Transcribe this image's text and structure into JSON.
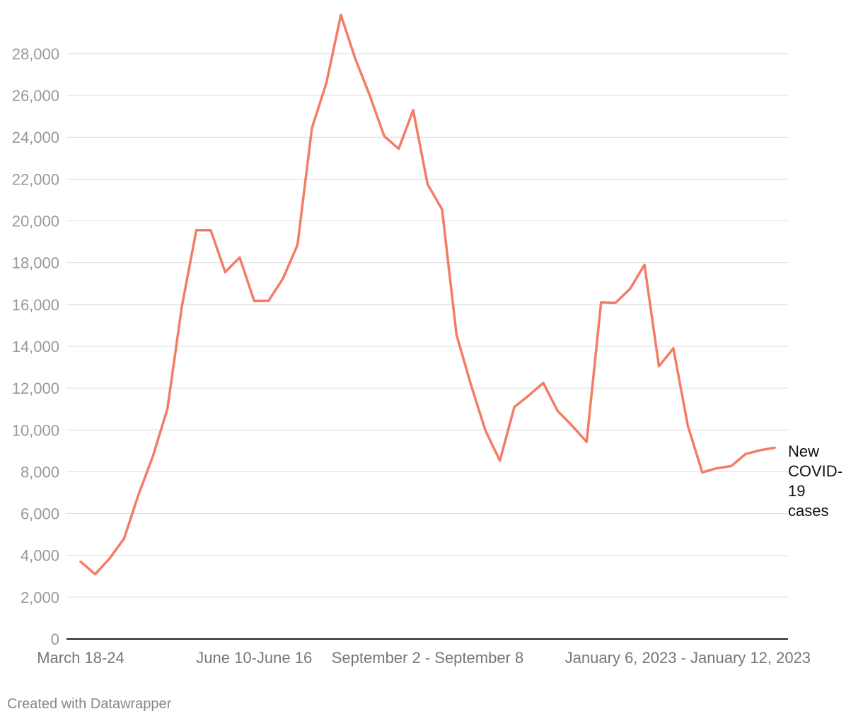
{
  "chart_data": {
    "type": "line",
    "title": "",
    "xlabel": "",
    "ylabel": "",
    "ylim": [
      0,
      29500
    ],
    "y_ticks": [
      0,
      2000,
      4000,
      6000,
      8000,
      10000,
      12000,
      14000,
      16000,
      18000,
      20000,
      22000,
      24000,
      26000,
      28000
    ],
    "y_tick_labels": [
      "0",
      "2,000",
      "4,000",
      "6,000",
      "8,000",
      "10,000",
      "12,000",
      "14,000",
      "16,000",
      "18,000",
      "20,000",
      "22,000",
      "24,000",
      "26,000",
      "28,000"
    ],
    "x_tick_labels": [
      {
        "index": 0,
        "label": "March 18-24"
      },
      {
        "index": 12,
        "label": "June 10-June 16"
      },
      {
        "index": 24,
        "label": "September 2 - September 8"
      },
      {
        "index": 42,
        "label": "January 6, 2023 - January 12, 2023"
      }
    ],
    "grid": true,
    "color": "#f47c65",
    "series": [
      {
        "name": "New COVID-19 cases",
        "values": [
          3700,
          3100,
          3850,
          4800,
          6900,
          8750,
          11000,
          15900,
          19550,
          19550,
          17550,
          18250,
          16180,
          16180,
          17250,
          18850,
          24450,
          26600,
          29850,
          27750,
          26000,
          24050,
          23450,
          25300,
          21750,
          20550,
          14550,
          12150,
          9970,
          8530,
          11100,
          11650,
          12250,
          10900,
          10200,
          9430,
          16100,
          16080,
          16750,
          17900,
          13050,
          13900,
          10200,
          7970,
          8170,
          8270,
          8850,
          9030,
          9150
        ]
      }
    ]
  },
  "series_label_lines": [
    "New",
    "COVID-",
    "19",
    "cases"
  ],
  "credit": "Created with Datawrapper"
}
